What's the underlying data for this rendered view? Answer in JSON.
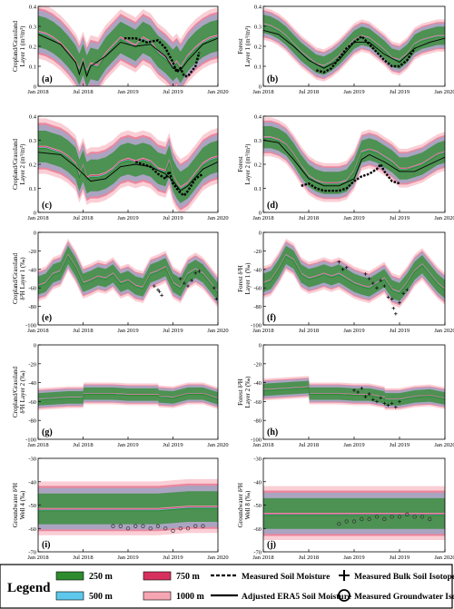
{
  "colors": {
    "m250": "#2e8b2e",
    "m500": "#5ec8ec",
    "m750": "#d8305e",
    "m1000": "#f6a6b2",
    "obs": "#000000"
  },
  "x_ticks": [
    "Jan 2018",
    "Jul 2018",
    "Jan 2019",
    "Jul 2019",
    "Jan 2020"
  ],
  "chart_data": [
    {
      "type": "area",
      "label": "(a)",
      "ylabel": [
        "Cropland/Grassland",
        "Layer 1 (m³/m³)"
      ],
      "ylim": [
        0,
        0.4
      ],
      "yticks": [
        "0",
        "0.1",
        "0.2",
        "0.3",
        "0.4"
      ],
      "x_months": [
        0,
        1,
        2,
        3,
        4,
        5,
        5.5,
        6,
        6.5,
        7,
        8,
        9,
        10,
        11,
        12,
        13,
        14,
        15,
        16,
        17,
        18,
        18.5,
        19,
        20,
        21,
        22,
        23,
        24
      ],
      "center": [
        0.27,
        0.26,
        0.24,
        0.21,
        0.17,
        0.12,
        0.08,
        0.13,
        0.07,
        0.11,
        0.1,
        0.16,
        0.2,
        0.24,
        0.22,
        0.2,
        0.24,
        0.22,
        0.17,
        0.14,
        0.1,
        0.12,
        0.09,
        0.15,
        0.19,
        0.22,
        0.24,
        0.25
      ],
      "spread": 0.12,
      "obs_line": {
        "x_months": [
          11.5,
          13,
          14.5,
          16,
          17,
          18,
          18.5,
          19,
          19.5,
          20,
          21,
          21.5
        ],
        "y": [
          0.24,
          0.24,
          0.22,
          0.23,
          0.19,
          0.12,
          0.07,
          0.09,
          0.05,
          0.05,
          0.1,
          0.17
        ]
      },
      "adjusted_line": {
        "x_months": [
          0,
          3,
          5,
          5.5,
          6,
          6.5,
          7,
          9,
          11,
          13,
          15,
          17,
          18,
          19,
          20,
          22,
          24
        ],
        "y": [
          0.26,
          0.21,
          0.12,
          0.06,
          0.12,
          0.05,
          0.1,
          0.15,
          0.22,
          0.2,
          0.21,
          0.15,
          0.09,
          0.08,
          0.13,
          0.21,
          0.24
        ]
      }
    },
    {
      "type": "area",
      "label": "(b)",
      "ylabel": [
        "Forest",
        "Layer 1 (m³/m³)"
      ],
      "ylim": [
        0,
        0.4
      ],
      "yticks": [
        "0",
        "0.1",
        "0.2",
        "0.3",
        "0.4"
      ],
      "x_months": [
        0,
        1,
        2,
        3,
        4,
        5,
        6,
        7,
        8,
        9,
        10,
        11,
        12,
        13,
        14,
        15,
        16,
        17,
        18,
        19,
        20,
        21,
        22,
        23,
        24
      ],
      "center": [
        0.31,
        0.3,
        0.28,
        0.25,
        0.21,
        0.17,
        0.14,
        0.11,
        0.1,
        0.12,
        0.15,
        0.19,
        0.23,
        0.25,
        0.24,
        0.21,
        0.18,
        0.14,
        0.13,
        0.16,
        0.21,
        0.23,
        0.24,
        0.25,
        0.25
      ],
      "spread": 0.07,
      "obs_line": {
        "x_months": [
          7,
          8,
          9,
          10,
          11,
          12,
          13,
          14,
          15,
          16,
          17,
          18,
          19,
          20
        ],
        "y": [
          0.08,
          0.07,
          0.09,
          0.14,
          0.19,
          0.22,
          0.25,
          0.21,
          0.17,
          0.13,
          0.1,
          0.1,
          0.13,
          0.19
        ]
      },
      "adjusted_line": {
        "x_months": [
          0,
          2,
          4,
          6,
          8,
          10,
          12,
          14,
          16,
          18,
          20,
          22,
          24
        ],
        "y": [
          0.28,
          0.26,
          0.2,
          0.13,
          0.09,
          0.13,
          0.22,
          0.22,
          0.16,
          0.12,
          0.19,
          0.22,
          0.24
        ]
      }
    },
    {
      "type": "area",
      "label": "(c)",
      "ylabel": [
        "Cropland/Grassland",
        "Layer 2 (m³/m³)"
      ],
      "ylim": [
        0,
        0.4
      ],
      "yticks": [
        "0",
        "0.1",
        "0.2",
        "0.3",
        "0.4"
      ],
      "x_months": [
        0,
        1,
        2,
        3,
        4,
        5,
        5.5,
        6,
        6.5,
        7,
        8,
        9,
        10,
        11,
        12,
        13,
        14,
        15,
        16,
        17,
        17.5,
        18,
        18.5,
        19,
        20,
        21,
        22,
        23,
        24
      ],
      "center": [
        0.27,
        0.27,
        0.26,
        0.25,
        0.23,
        0.2,
        0.15,
        0.19,
        0.14,
        0.15,
        0.15,
        0.16,
        0.18,
        0.21,
        0.22,
        0.21,
        0.22,
        0.21,
        0.18,
        0.17,
        0.21,
        0.15,
        0.12,
        0.1,
        0.12,
        0.16,
        0.2,
        0.22,
        0.23
      ],
      "spread": 0.1,
      "obs_line": {
        "x_months": [
          13,
          14,
          15,
          16,
          17,
          17.5,
          18,
          18.5,
          19,
          19.5,
          20,
          21,
          22
        ],
        "y": [
          0.21,
          0.2,
          0.19,
          0.16,
          0.14,
          0.17,
          0.12,
          0.1,
          0.08,
          0.07,
          0.09,
          0.14,
          0.16
        ]
      },
      "adjusted_line": {
        "x_months": [
          0,
          3,
          5,
          6,
          7,
          9,
          11,
          13,
          15,
          17,
          18,
          19,
          20,
          22,
          24
        ],
        "y": [
          0.25,
          0.24,
          0.19,
          0.16,
          0.13,
          0.14,
          0.19,
          0.2,
          0.19,
          0.16,
          0.13,
          0.09,
          0.11,
          0.18,
          0.21
        ]
      }
    },
    {
      "type": "area",
      "label": "(d)",
      "ylabel": [
        "Forest",
        "Layer 2 (m³/m³)"
      ],
      "ylim": [
        0,
        0.4
      ],
      "yticks": [
        "0",
        "0.1",
        "0.2",
        "0.3",
        "0.4"
      ],
      "x_months": [
        0,
        1,
        2,
        3,
        4,
        5,
        6,
        7,
        8,
        9,
        10,
        11,
        12,
        13,
        14,
        15,
        16,
        17,
        18,
        19,
        20,
        21,
        22,
        23,
        24
      ],
      "center": [
        0.31,
        0.31,
        0.3,
        0.28,
        0.24,
        0.19,
        0.15,
        0.13,
        0.12,
        0.12,
        0.12,
        0.13,
        0.17,
        0.25,
        0.26,
        0.25,
        0.23,
        0.21,
        0.18,
        0.18,
        0.19,
        0.2,
        0.22,
        0.24,
        0.25
      ],
      "spread": 0.07,
      "obs_line": {
        "x_months": [
          5,
          6,
          7,
          8,
          9,
          10,
          11,
          12,
          13,
          14,
          15,
          15.5,
          16,
          17,
          18
        ],
        "y": [
          0.11,
          0.12,
          0.1,
          0.09,
          0.09,
          0.09,
          0.1,
          0.13,
          0.15,
          0.16,
          0.18,
          0.2,
          0.17,
          0.13,
          0.12
        ]
      },
      "adjusted_line": {
        "x_months": [
          0,
          2,
          4,
          6,
          8,
          10,
          12,
          13,
          14,
          16,
          18,
          20,
          22,
          24
        ],
        "y": [
          0.3,
          0.29,
          0.22,
          0.14,
          0.11,
          0.11,
          0.14,
          0.22,
          0.24,
          0.21,
          0.17,
          0.17,
          0.2,
          0.23
        ]
      }
    },
    {
      "type": "area",
      "label": "(e)",
      "ylabel": [
        "Cropland/Grassland",
        "δ²H Layer 1 (‰)"
      ],
      "ylim": [
        -100,
        0
      ],
      "yticks": [
        "-100",
        "-80",
        "-60",
        "-40",
        "-20",
        "0"
      ],
      "x_months": [
        0,
        1,
        2,
        3,
        4,
        5,
        6,
        7,
        8,
        9,
        10,
        11,
        12,
        13,
        14,
        15,
        16,
        17,
        18,
        19,
        20,
        21,
        22,
        23,
        24
      ],
      "center": [
        -58,
        -55,
        -45,
        -42,
        -25,
        -38,
        -55,
        -52,
        -48,
        -50,
        -45,
        -55,
        -52,
        -58,
        -60,
        -45,
        -42,
        -38,
        -55,
        -60,
        -45,
        -40,
        -45,
        -55,
        -65
      ],
      "spread": 15,
      "obs_points": {
        "x_months": [
          15.5,
          16,
          16.2,
          16.5,
          19,
          19.5,
          20,
          20.5,
          21,
          21.5,
          23.5,
          23.8
        ],
        "y": [
          -58,
          -62,
          -64,
          -68,
          -50,
          -55,
          -58,
          -52,
          -44,
          -42,
          -60,
          -72
        ]
      }
    },
    {
      "type": "area",
      "label": "(f)",
      "ylabel": [
        "Forest δ²H",
        "Layer 1 (‰)"
      ],
      "ylim": [
        -100,
        0
      ],
      "yticks": [
        "-100",
        "-80",
        "-60",
        "-40",
        "-20",
        "0"
      ],
      "x_months": [
        0,
        1,
        2,
        3,
        4,
        5,
        6,
        7,
        8,
        9,
        10,
        11,
        12,
        13,
        14,
        15,
        16,
        17,
        18,
        19,
        20,
        21,
        22,
        23,
        24
      ],
      "center": [
        -55,
        -52,
        -40,
        -25,
        -30,
        -45,
        -50,
        -48,
        -45,
        -48,
        -45,
        -50,
        -55,
        -58,
        -60,
        -55,
        -50,
        -62,
        -65,
        -55,
        -42,
        -35,
        -45,
        -55,
        -62
      ],
      "spread": 15,
      "obs_points": {
        "x_months": [
          10,
          10.5,
          11,
          13.5,
          14,
          14.5,
          15,
          15.5,
          16,
          16.5,
          17,
          17.2,
          17.5,
          18,
          18.5,
          19
        ],
        "y": [
          -32,
          -40,
          -38,
          -45,
          -50,
          -55,
          -60,
          -52,
          -58,
          -70,
          -72,
          -82,
          -88,
          -76,
          -66,
          -62
        ]
      }
    },
    {
      "type": "area",
      "label": "(g)",
      "ylabel": [
        "Cropland/Grassland",
        "δ²H Layer 2 (‰)"
      ],
      "ylim": [
        -100,
        0
      ],
      "yticks": [
        "-100",
        "-80",
        "-60",
        "-40",
        "-20",
        "0"
      ],
      "x_months": [
        0,
        2,
        4,
        6,
        6.1,
        10,
        12,
        14,
        16,
        16.1,
        18,
        20,
        22,
        24
      ],
      "center": [
        -58,
        -57,
        -56,
        -56,
        -52,
        -52,
        -53,
        -53,
        -53,
        -55,
        -56,
        -52,
        -52,
        -57
      ],
      "spread": 10
    },
    {
      "type": "area",
      "label": "(h)",
      "ylabel": [
        "Forest δ²H",
        "Layer 2 (‰)"
      ],
      "ylim": [
        -100,
        0
      ],
      "yticks": [
        "-100",
        "-80",
        "-60",
        "-40",
        "-20",
        "0"
      ],
      "x_months": [
        0,
        2,
        4,
        6,
        6.1,
        10,
        12,
        14,
        16,
        16.1,
        18,
        20,
        22,
        24
      ],
      "center": [
        -48,
        -47,
        -46,
        -45,
        -52,
        -52,
        -53,
        -53,
        -56,
        -58,
        -58,
        -55,
        -54,
        -57
      ],
      "spread": 10,
      "obs_points": {
        "x_months": [
          12,
          12.5,
          13,
          13.5,
          14,
          14.5,
          15,
          15.5,
          16,
          16.5,
          17,
          17.5,
          18
        ],
        "y": [
          -48,
          -50,
          -46,
          -55,
          -52,
          -58,
          -60,
          -56,
          -62,
          -64,
          -62,
          -66,
          -60
        ]
      }
    },
    {
      "type": "area",
      "label": "(i)",
      "ylabel": [
        "Groundwater δ²H",
        "Well 4 (‰)"
      ],
      "ylim": [
        -70,
        -30
      ],
      "yticks": [
        "-70",
        "-60",
        "-50",
        "-40",
        "-30"
      ],
      "x_months": [
        0,
        4,
        8,
        12,
        16,
        20,
        24
      ],
      "center": [
        -52,
        -52,
        -52,
        -52,
        -52,
        -51,
        -51
      ],
      "spread": 10,
      "obs_points": {
        "x_months": [
          10,
          11,
          12,
          13,
          14,
          15,
          16,
          17,
          18,
          19,
          20,
          21,
          22
        ],
        "y": [
          -59,
          -59,
          -60,
          -59,
          -59,
          -60,
          -59,
          -60,
          -61,
          -60,
          -60,
          -59,
          -59
        ]
      }
    },
    {
      "type": "area",
      "label": "(j)",
      "ylabel": [
        "Groundwater δ²H",
        "Well 8 (‰)"
      ],
      "ylim": [
        -70,
        -30
      ],
      "yticks": [
        "-70",
        "-60",
        "-50",
        "-40",
        "-30"
      ],
      "x_months": [
        0,
        4,
        8,
        12,
        16,
        20,
        24
      ],
      "center": [
        -54,
        -54,
        -54,
        -54,
        -54,
        -54,
        -54
      ],
      "spread": 10,
      "obs_points": {
        "x_months": [
          10,
          11,
          12,
          13,
          14,
          15,
          16,
          17,
          18,
          19,
          20,
          21,
          22
        ],
        "y": [
          -58,
          -57,
          -57,
          -56,
          -56,
          -55,
          -56,
          -55,
          -55,
          -54,
          -55,
          -55,
          -56
        ]
      }
    }
  ],
  "legend": {
    "title": "Legend",
    "items": [
      {
        "key": "m250",
        "label": "250 m"
      },
      {
        "key": "m500",
        "label": "500 m"
      },
      {
        "key": "m750",
        "label": "750 m"
      },
      {
        "key": "m1000",
        "label": "1000 m"
      }
    ],
    "measured_soil_moisture": "Measured Soil Moisture",
    "adjusted_era5": "Adjusted ERA5 Soil Moisture",
    "bulk_soil_isotopes": "Measured Bulk Soil Isotopes",
    "groundwater_isotopes": "Measured Groundwater Isotopes"
  }
}
